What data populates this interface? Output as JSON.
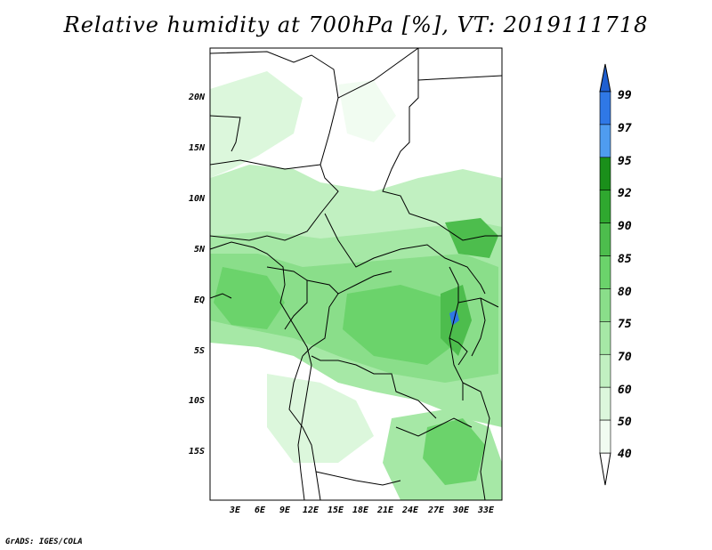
{
  "title": "Relative humidity at 700hPa [%], VT: 2019111718",
  "credit": "GrADS: IGES/COLA",
  "lat_labels": [
    "20N",
    "15N",
    "10N",
    "5N",
    "EQ",
    "5S",
    "10S",
    "15S"
  ],
  "lon_labels": [
    "3E",
    "6E",
    "9E",
    "12E",
    "15E",
    "18E",
    "21E",
    "24E",
    "27E",
    "30E",
    "33E"
  ],
  "colorbar": {
    "levels": [
      "99",
      "97",
      "95",
      "92",
      "90",
      "85",
      "80",
      "75",
      "70",
      "60",
      "50",
      "40"
    ],
    "colors": [
      "#1f5fd1",
      "#2f78e6",
      "#4f9cf0",
      "#1a8f1a",
      "#2fa82f",
      "#4dbd4d",
      "#6bd36b",
      "#8ade8a",
      "#a6e8a6",
      "#c1f0c1",
      "#dcf7dc",
      "#f1fcf1"
    ]
  },
  "map_colors": {
    "background": "#ffffff",
    "border": "#000000",
    "level40": "#f1fcf1",
    "level50": "#dcf7dc",
    "level60": "#c1f0c1",
    "level70": "#a6e8a6",
    "level75": "#8ade8a",
    "level80": "#6bd36b",
    "level85": "#4dbd4d",
    "level97": "#2f78e6"
  }
}
